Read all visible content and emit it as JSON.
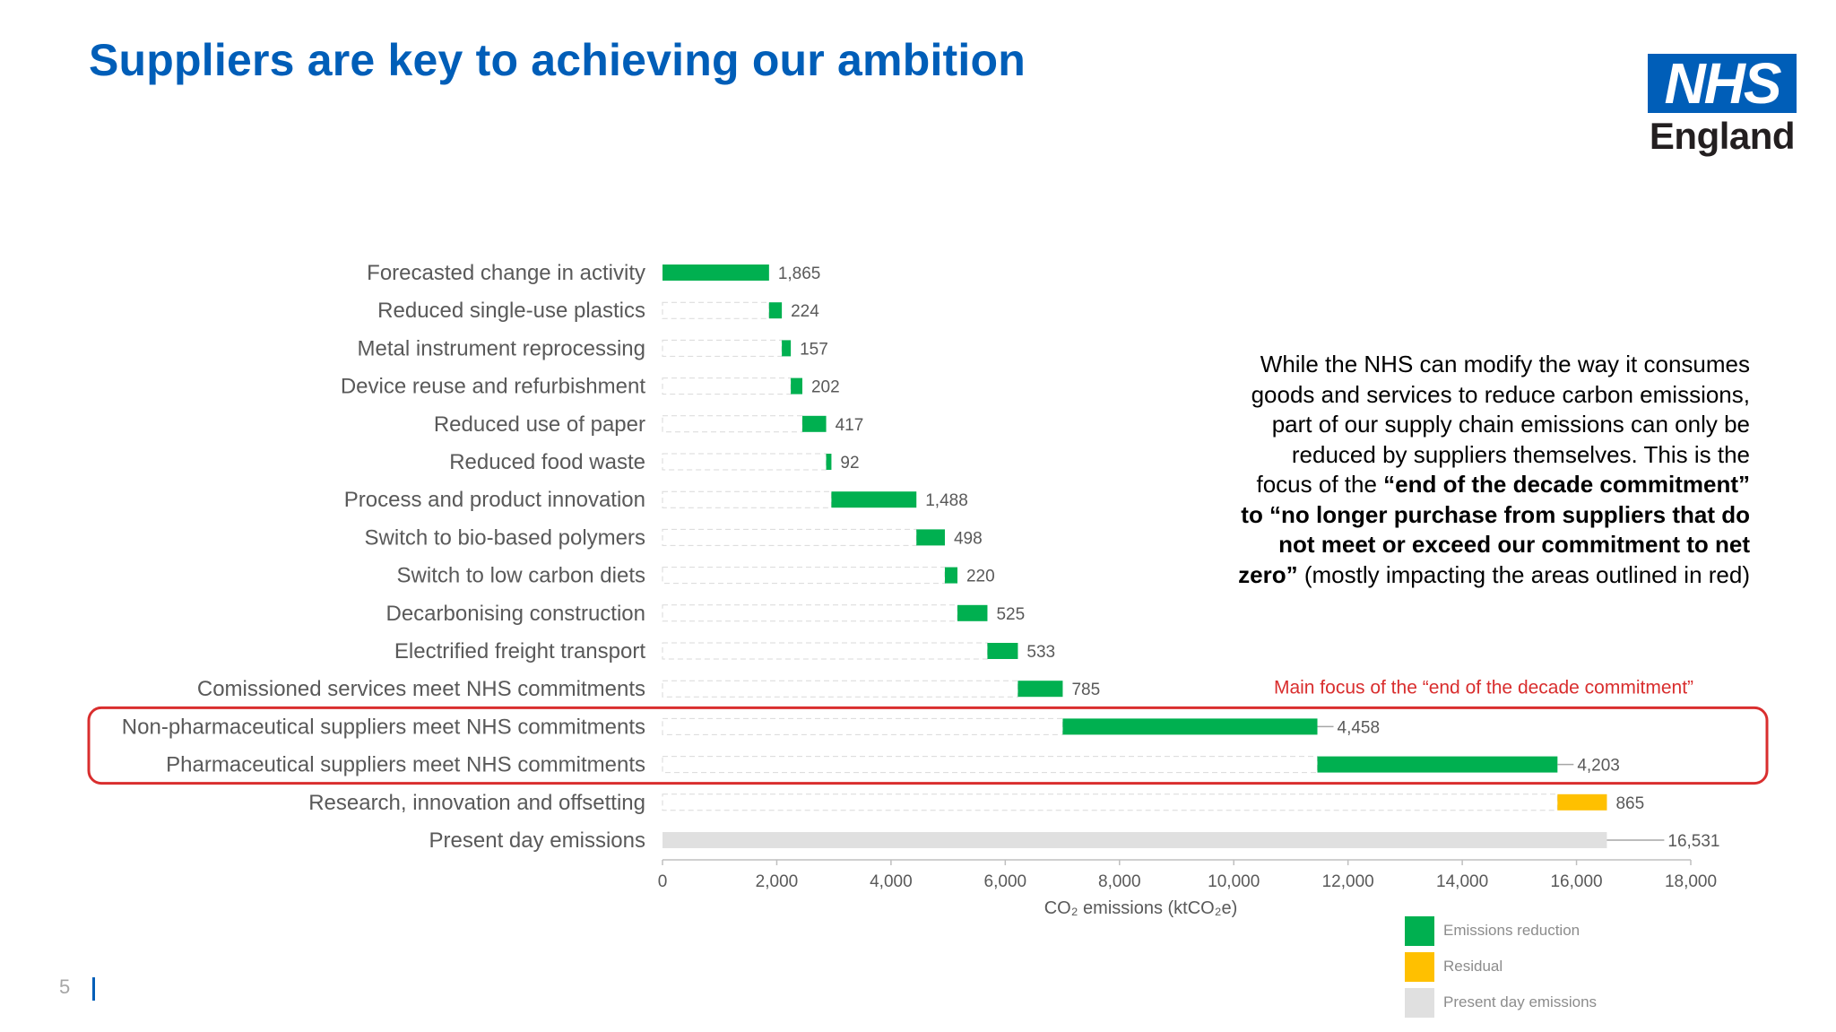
{
  "slide": {
    "title": "Suppliers are key to achieving our ambition",
    "logo": {
      "box": "NHS",
      "word": "England"
    },
    "page_number": "5",
    "sidebar": {
      "p1": "While the NHS can modify the way it consumes goods and services to reduce carbon emissions, part of our supply chain emissions can only be reduced by suppliers themselves. This is the focus of the ",
      "bold": "“end of the decade commitment” to “no longer purchase from suppliers that do not meet or exceed our commitment to net zero”",
      "p2": " (mostly impacting the areas outlined in red)"
    }
  },
  "chart_data": {
    "type": "bar",
    "subtype": "waterfall-horizontal",
    "xlabel": "CO₂ emissions (ktCO₂e)",
    "xlim": [
      0,
      18000
    ],
    "xticks": [
      "0",
      "2,000",
      "4,000",
      "6,000",
      "8,000",
      "10,000",
      "12,000",
      "14,000",
      "16,000",
      "18,000"
    ],
    "xtick_values": [
      0,
      2000,
      4000,
      6000,
      8000,
      10000,
      12000,
      14000,
      16000,
      18000
    ],
    "highlight_annotation": "Main focus of the “end of the decade commitment”",
    "colors": {
      "reduction": "#00B050",
      "residual": "#FFC000",
      "present": "#E0E0E0",
      "highlight": "#D92E2E",
      "label": "#7f7f7f"
    },
    "bars": [
      {
        "label": "Forecasted change in activity",
        "value": 1865,
        "value_label": "1,865",
        "start": 0,
        "kind": "reduction"
      },
      {
        "label": "Reduced single-use plastics",
        "value": 224,
        "value_label": "224",
        "start": 1865,
        "kind": "reduction"
      },
      {
        "label": "Metal instrument reprocessing",
        "value": 157,
        "value_label": "157",
        "start": 2089,
        "kind": "reduction"
      },
      {
        "label": "Device reuse and refurbishment",
        "value": 202,
        "value_label": "202",
        "start": 2246,
        "kind": "reduction"
      },
      {
        "label": "Reduced use of paper",
        "value": 417,
        "value_label": "417",
        "start": 2448,
        "kind": "reduction"
      },
      {
        "label": "Reduced food waste",
        "value": 92,
        "value_label": "92",
        "start": 2865,
        "kind": "reduction"
      },
      {
        "label": "Process and product innovation",
        "value": 1488,
        "value_label": "1,488",
        "start": 2957,
        "kind": "reduction"
      },
      {
        "label": "Switch to bio-based polymers",
        "value": 498,
        "value_label": "498",
        "start": 4445,
        "kind": "reduction"
      },
      {
        "label": "Switch to low carbon diets",
        "value": 220,
        "value_label": "220",
        "start": 4943,
        "kind": "reduction"
      },
      {
        "label": "Decarbonising construction",
        "value": 525,
        "value_label": "525",
        "start": 5163,
        "kind": "reduction"
      },
      {
        "label": "Electrified freight transport",
        "value": 533,
        "value_label": "533",
        "start": 5688,
        "kind": "reduction"
      },
      {
        "label": "Comissioned services meet NHS commitments",
        "value": 785,
        "value_label": "785",
        "start": 6221,
        "kind": "reduction"
      },
      {
        "label": "Non-pharmaceutical suppliers meet NHS commitments",
        "value": 4458,
        "value_label": "4,458",
        "start": 7006,
        "kind": "reduction",
        "highlight": true
      },
      {
        "label": "Pharmaceutical suppliers meet NHS commitments",
        "value": 4203,
        "value_label": "4,203",
        "start": 11464,
        "kind": "reduction",
        "highlight": true
      },
      {
        "label": "Research, innovation and offsetting",
        "value": 865,
        "value_label": "865",
        "start": 15667,
        "kind": "residual"
      },
      {
        "label": "Present day emissions",
        "value": 16531,
        "value_label": "16,531",
        "start": 0,
        "kind": "present"
      }
    ],
    "legend": [
      {
        "label": "Emissions reduction",
        "kind": "reduction"
      },
      {
        "label": "Residual",
        "kind": "residual"
      },
      {
        "label": "Present day emissions",
        "kind": "present"
      }
    ]
  }
}
